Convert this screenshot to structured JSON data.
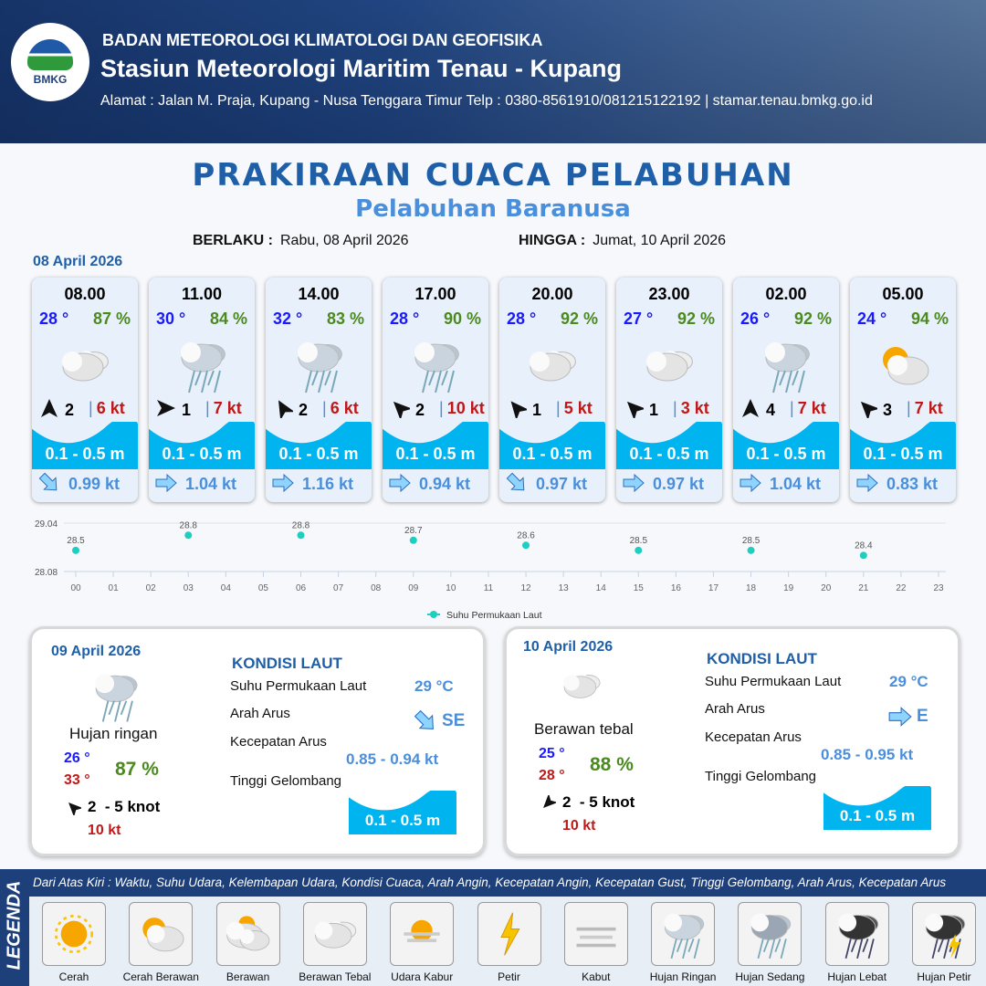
{
  "header": {
    "logo_text": "BMKG",
    "org": "BADAN METEOROLOGI KLIMATOLOGI DAN GEOFISIKA",
    "station": "Stasiun Meteorologi Maritim Tenau - Kupang",
    "address": "Alamat : Jalan M. Praja, Kupang - Nusa Tenggara Timur Telp : 0380-8561910/081215122192  | stamar.tenau.bmkg.go.id"
  },
  "title": "PRAKIRAAN CUACA PELABUHAN",
  "subtitle": "Pelabuhan Baranusa",
  "validity": {
    "from_label": "BERLAKU :",
    "from": "Rabu, 08 April 2026",
    "to_label": "HINGGA :",
    "to": "Jumat, 10 April 2026"
  },
  "day1": {
    "date": "08 April 2026",
    "forecasts": [
      {
        "time": "08.00",
        "temp": "28 °",
        "hum": "87 %",
        "icon": "berawan-tebal",
        "wind_dir_deg": 0,
        "wind": "2",
        "gust": "6 kt",
        "wave": "0.1 - 0.5 m",
        "current_icon": "arrow-se",
        "current": "0.99 kt"
      },
      {
        "time": "11.00",
        "temp": "30 °",
        "hum": "84 %",
        "icon": "hujan-ringan",
        "wind_dir_deg": 90,
        "wind": "1",
        "gust": "7 kt",
        "wave": "0.1 - 0.5 m",
        "current_icon": "arrow-e",
        "current": "1.04 kt"
      },
      {
        "time": "14.00",
        "temp": "32 °",
        "hum": "83 %",
        "icon": "hujan-ringan",
        "wind_dir_deg": -30,
        "wind": "2",
        "gust": "6 kt",
        "wave": "0.1 - 0.5 m",
        "current_icon": "arrow-e",
        "current": "1.16 kt"
      },
      {
        "time": "17.00",
        "temp": "28 °",
        "hum": "90 %",
        "icon": "hujan-ringan",
        "wind_dir_deg": -45,
        "wind": "2",
        "gust": "10 kt",
        "wave": "0.1 - 0.5 m",
        "current_icon": "arrow-e",
        "current": "0.94 kt"
      },
      {
        "time": "20.00",
        "temp": "28 °",
        "hum": "92 %",
        "icon": "berawan-tebal",
        "wind_dir_deg": -40,
        "wind": "1",
        "gust": "5 kt",
        "wave": "0.1 - 0.5 m",
        "current_icon": "arrow-se",
        "current": "0.97 kt"
      },
      {
        "time": "23.00",
        "temp": "27 °",
        "hum": "92 %",
        "icon": "berawan-tebal",
        "wind_dir_deg": -45,
        "wind": "1",
        "gust": "3 kt",
        "wave": "0.1 - 0.5 m",
        "current_icon": "arrow-e",
        "current": "0.97 kt"
      },
      {
        "time": "02.00",
        "temp": "26 °",
        "hum": "92 %",
        "icon": "hujan-ringan",
        "wind_dir_deg": 0,
        "wind": "4",
        "gust": "7 kt",
        "wave": "0.1 - 0.5 m",
        "current_icon": "arrow-e",
        "current": "1.04 kt"
      },
      {
        "time": "05.00",
        "temp": "24 °",
        "hum": "94 %",
        "icon": "cerah-berawan",
        "wind_dir_deg": -45,
        "wind": "3",
        "gust": "7 kt",
        "wave": "0.1 - 0.5 m",
        "current_icon": "arrow-e",
        "current": "0.83 kt"
      }
    ]
  },
  "chart_data": {
    "type": "scatter",
    "x_ticks": [
      "00",
      "01",
      "02",
      "03",
      "04",
      "05",
      "06",
      "07",
      "08",
      "09",
      "10",
      "11",
      "12",
      "13",
      "14",
      "15",
      "16",
      "17",
      "18",
      "19",
      "20",
      "21",
      "22",
      "23"
    ],
    "y_ticks": [
      "29.04",
      "28.08"
    ],
    "ylim": [
      28.08,
      29.04
    ],
    "legend": "bottom",
    "grid": true,
    "series": [
      {
        "name": "Suhu Permukaan Laut",
        "color": "#1ecfc0",
        "x": [
          0,
          3,
          6,
          9,
          12,
          15,
          18,
          21
        ],
        "y": [
          28.5,
          28.8,
          28.8,
          28.7,
          28.6,
          28.5,
          28.5,
          28.4
        ],
        "labels": [
          "28.5",
          "28.8",
          "28.8",
          "28.7",
          "28.6",
          "28.5",
          "28.5",
          "28.4"
        ]
      }
    ]
  },
  "days": [
    {
      "date": "09 April 2026",
      "condition": "Hujan ringan",
      "icon": "hujan-ringan",
      "tmin": "26 °",
      "tmax": "33 °",
      "hum": "87 %",
      "wind": "2  - 5 knot",
      "gust": "10 kt",
      "wind_dir_deg": -45,
      "sea_heading": "KONDISI LAUT",
      "sst_label": "Suhu Permukaan Laut",
      "sst": "29 °C",
      "dir_label": "Arah Arus",
      "dir": "SE",
      "current_icon": "arrow-se",
      "spd_label": "Kecepatan Arus",
      "spd": "0.85 - 0.94 kt",
      "wave_label": "Tinggi Gelombang",
      "wave": "0.1 - 0.5 m"
    },
    {
      "date": "10 April 2026",
      "condition": "Berawan tebal",
      "icon": "berawan-tebal",
      "tmin": "25 °",
      "tmax": "28 °",
      "hum": "88 %",
      "wind": "2  - 5 knot",
      "gust": "10 kt",
      "wind_dir_deg": -135,
      "sea_heading": "KONDISI LAUT",
      "sst_label": "Suhu Permukaan Laut",
      "sst": "29 °C",
      "dir_label": "Arah Arus",
      "dir": "E",
      "current_icon": "arrow-e",
      "spd_label": "Kecepatan Arus",
      "spd": "0.85 - 0.95 kt",
      "wave_label": "Tinggi Gelombang",
      "wave": "0.1 - 0.5 m"
    }
  ],
  "legend": {
    "title": "LEGENDA",
    "description": "Dari Atas Kiri : Waktu, Suhu Udara, Kelembapan Udara, Kondisi Cuaca, Arah Angin, Kecepatan Angin, Kecepatan Gust, Tinggi Gelombang, Arah Arus, Kecepatan Arus",
    "items": [
      {
        "label": "Cerah",
        "icon": "cerah"
      },
      {
        "label": "Cerah Berawan",
        "icon": "cerah-berawan"
      },
      {
        "label": "Berawan",
        "icon": "berawan"
      },
      {
        "label": "Berawan Tebal",
        "icon": "berawan-tebal"
      },
      {
        "label": "Udara Kabur",
        "icon": "udara-kabur"
      },
      {
        "label": "Petir",
        "icon": "petir"
      },
      {
        "label": "Kabut",
        "icon": "kabut"
      },
      {
        "label": "Hujan Ringan",
        "icon": "hujan-ringan"
      },
      {
        "label": "Hujan Sedang",
        "icon": "hujan-sedang"
      },
      {
        "label": "Hujan Lebat",
        "icon": "hujan-lebat"
      },
      {
        "label": "Hujan Petir",
        "icon": "hujan-petir"
      }
    ]
  },
  "colors": {
    "brand": "#1f5fa8",
    "wave": "#00b4f0",
    "temp": "#1a1aff",
    "humidity": "#4b8a1e",
    "gust": "#c01818",
    "current": "#4a8fdc"
  }
}
